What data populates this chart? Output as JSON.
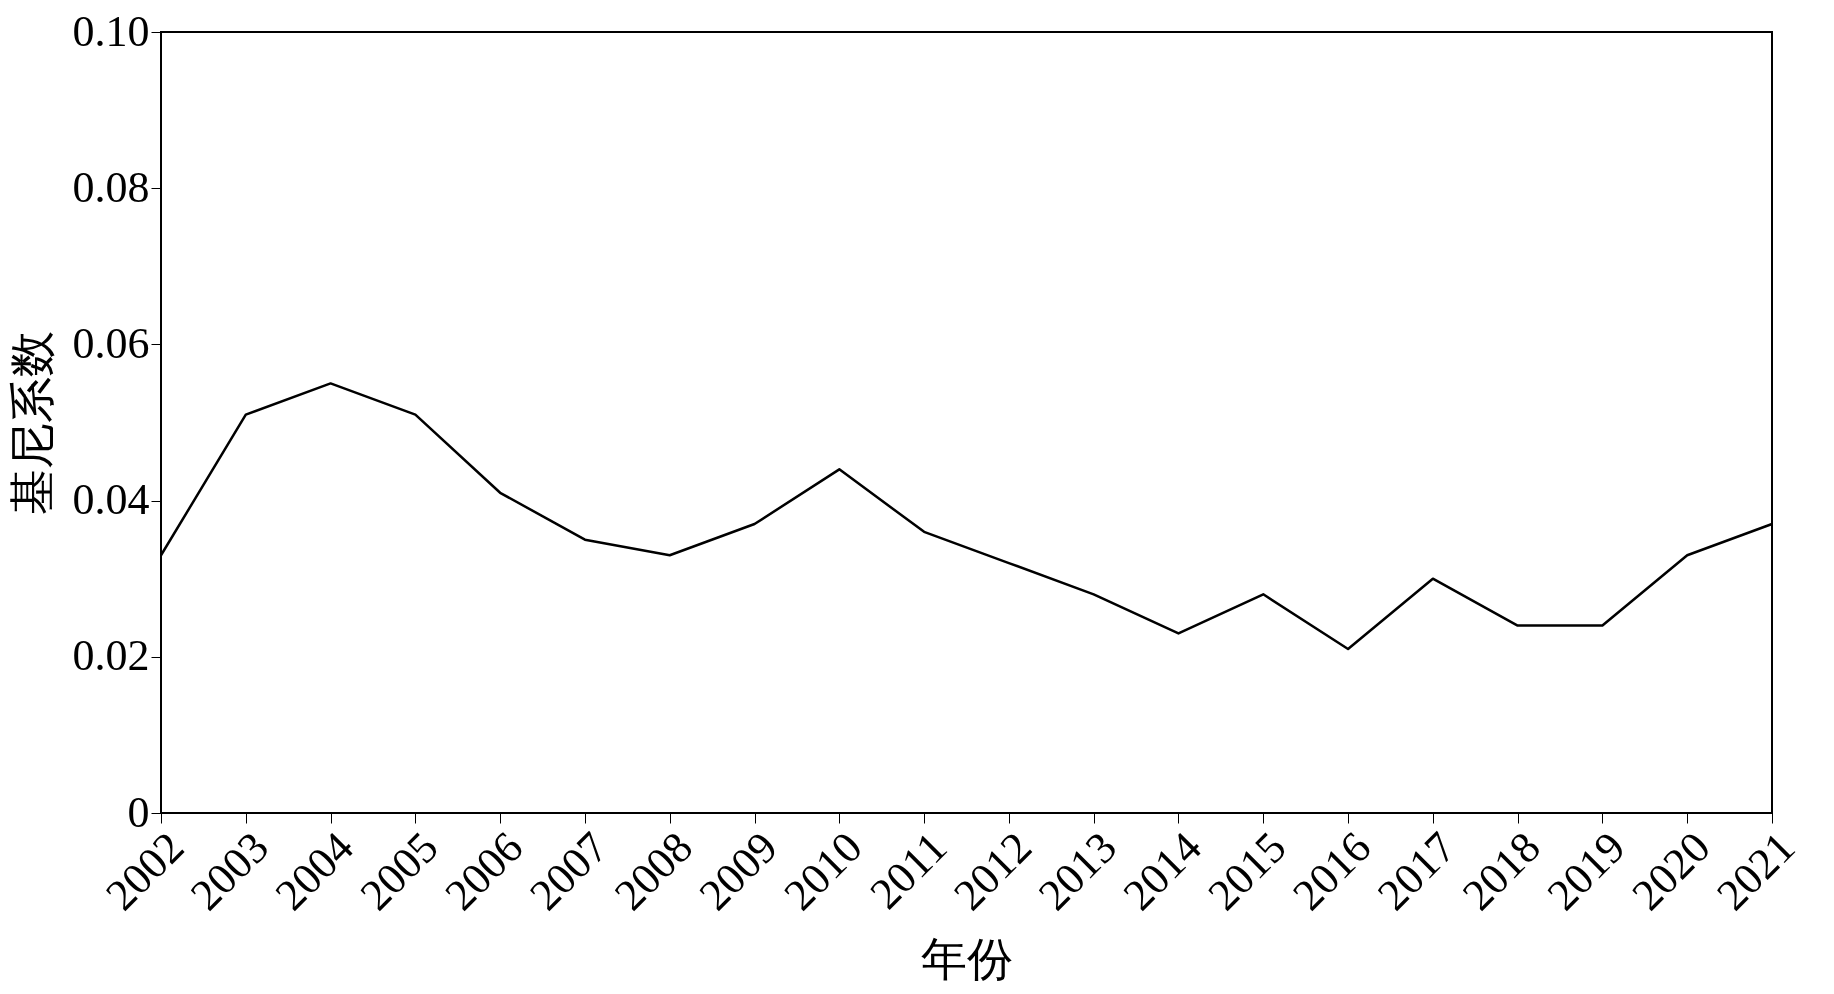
{
  "chart_data": {
    "type": "line",
    "xlabel": "年份",
    "ylabel": "基尼系数",
    "categories": [
      "2002",
      "2003",
      "2004",
      "2005",
      "2006",
      "2007",
      "2008",
      "2009",
      "2010",
      "2011",
      "2012",
      "2013",
      "2014",
      "2015",
      "2016",
      "2017",
      "2018",
      "2019",
      "2020",
      "2021"
    ],
    "series": [
      {
        "color": "#000000",
        "values": [
          0.033,
          0.051,
          0.055,
          0.051,
          0.041,
          0.035,
          0.033,
          0.037,
          0.044,
          0.036,
          0.032,
          0.028,
          0.023,
          0.028,
          0.021,
          0.03,
          0.024,
          0.024,
          0.033,
          0.037
        ]
      }
    ],
    "ylim": [
      0,
      0.1
    ],
    "yticks": [
      {
        "value": 0,
        "label": "0"
      },
      {
        "value": 0.02,
        "label": "0.02"
      },
      {
        "value": 0.04,
        "label": "0.04"
      },
      {
        "value": 0.06,
        "label": "0.06"
      },
      {
        "value": 0.08,
        "label": "0.08"
      },
      {
        "value": 0.1,
        "label": "0.10"
      }
    ],
    "grid": false,
    "marker": "none",
    "line_style": "solid"
  }
}
